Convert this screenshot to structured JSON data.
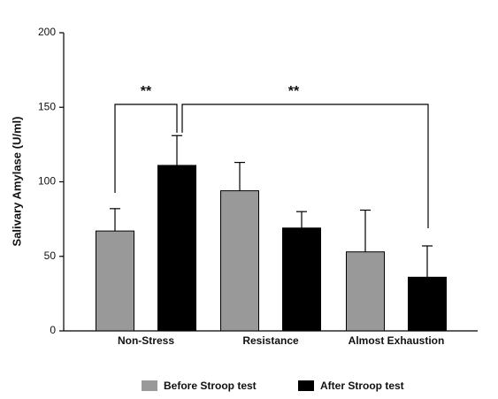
{
  "chart_data": {
    "type": "bar",
    "y_label": "Salivary Amylase (U/ml)",
    "categories": [
      "Non-Stress",
      "Resistance",
      "Almost Exhaustion"
    ],
    "series": [
      {
        "name": "Before Stroop test",
        "color": "#999999",
        "values": [
          67,
          94,
          53
        ],
        "errors": [
          15,
          19,
          28
        ]
      },
      {
        "name": "After Stroop test",
        "color": "#000000",
        "values": [
          111,
          69,
          36
        ],
        "errors": [
          20,
          11,
          21
        ]
      }
    ],
    "ylim": [
      0,
      200
    ],
    "yticks": [
      0,
      50,
      100,
      150,
      200
    ],
    "annotations": [
      "**",
      "**"
    ],
    "legend": "bottom"
  }
}
